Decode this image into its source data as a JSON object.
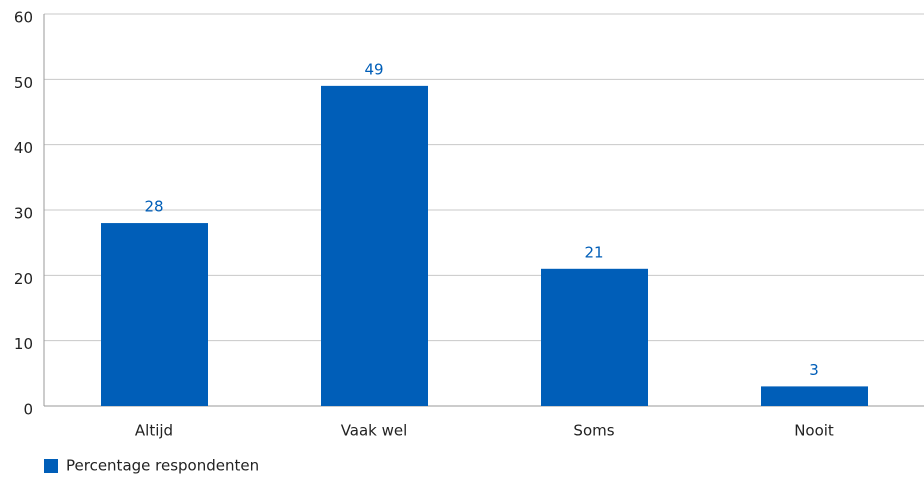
{
  "chart_data": {
    "type": "bar",
    "categories": [
      "Altijd",
      "Vaak wel",
      "Soms",
      "Nooit"
    ],
    "series": [
      {
        "name": "Percentage respondenten",
        "color": "#005eb8",
        "values": [
          28,
          49,
          21,
          3
        ]
      }
    ],
    "ylim": [
      0,
      60
    ],
    "yticks": [
      0,
      10,
      20,
      30,
      40,
      50,
      60
    ],
    "grid": true,
    "legend": "bottom-left"
  }
}
